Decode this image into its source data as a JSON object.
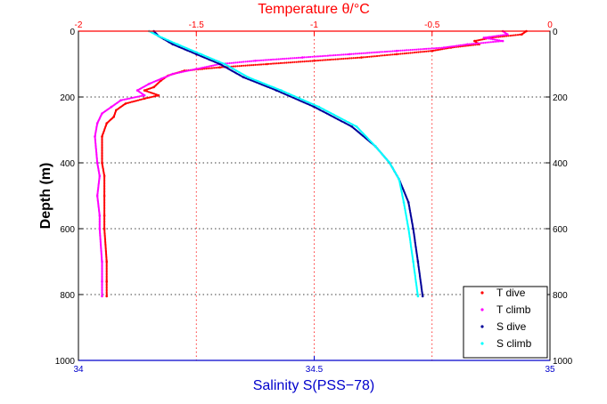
{
  "chart_data": {
    "type": "scatter",
    "title": "",
    "top_axis": {
      "label": "Temperature θ/°C",
      "range": [
        -2,
        0
      ],
      "ticks": [
        -2,
        -1.5,
        -1,
        -0.5,
        0
      ],
      "tick_labels": [
        "-2",
        "-1.5",
        "-1",
        "-0.5",
        "0"
      ],
      "color": "#ff0000"
    },
    "bottom_axis": {
      "label": "Salinity S(PSS−78)",
      "range": [
        34,
        35
      ],
      "ticks": [
        34,
        34.5,
        35
      ],
      "tick_labels": [
        "34",
        "34.5",
        "35"
      ],
      "color": "#0000cc"
    },
    "y_axis": {
      "label": "Depth (m)",
      "range": [
        0,
        1000
      ],
      "inverted": true,
      "ticks": [
        0,
        200,
        400,
        600,
        800,
        1000
      ],
      "tick_labels": [
        "0",
        "200",
        "400",
        "600",
        "800",
        "1000"
      ]
    },
    "grid": true,
    "legend_position": "bottom-right",
    "series": [
      {
        "name": "T dive",
        "axis": "top",
        "color": "#ff0000",
        "points": [
          [
            -0.1,
            0
          ],
          [
            -0.12,
            10
          ],
          [
            -0.25,
            20
          ],
          [
            -0.32,
            30
          ],
          [
            -0.3,
            40
          ],
          [
            -0.42,
            50
          ],
          [
            -0.5,
            60
          ],
          [
            -0.65,
            70
          ],
          [
            -0.8,
            80
          ],
          [
            -1.0,
            90
          ],
          [
            -1.2,
            100
          ],
          [
            -1.4,
            110
          ],
          [
            -1.55,
            120
          ],
          [
            -1.62,
            135
          ],
          [
            -1.65,
            150
          ],
          [
            -1.68,
            170
          ],
          [
            -1.72,
            180
          ],
          [
            -1.66,
            195
          ],
          [
            -1.72,
            205
          ],
          [
            -1.8,
            220
          ],
          [
            -1.84,
            240
          ],
          [
            -1.85,
            260
          ],
          [
            -1.88,
            280
          ],
          [
            -1.9,
            320
          ],
          [
            -1.9,
            400
          ],
          [
            -1.89,
            440
          ],
          [
            -1.89,
            500
          ],
          [
            -1.89,
            560
          ],
          [
            -1.89,
            600
          ],
          [
            -1.88,
            700
          ],
          [
            -1.88,
            760
          ],
          [
            -1.88,
            805
          ]
        ]
      },
      {
        "name": "T climb",
        "axis": "top",
        "color": "#ff00ff",
        "points": [
          [
            -0.2,
            0
          ],
          [
            -0.18,
            10
          ],
          [
            -0.28,
            20
          ],
          [
            -0.2,
            30
          ],
          [
            -0.35,
            40
          ],
          [
            -0.45,
            50
          ],
          [
            -0.65,
            60
          ],
          [
            -0.85,
            70
          ],
          [
            -1.05,
            80
          ],
          [
            -1.25,
            90
          ],
          [
            -1.4,
            100
          ],
          [
            -1.5,
            115
          ],
          [
            -1.6,
            130
          ],
          [
            -1.65,
            145
          ],
          [
            -1.7,
            160
          ],
          [
            -1.75,
            180
          ],
          [
            -1.72,
            195
          ],
          [
            -1.82,
            210
          ],
          [
            -1.86,
            230
          ],
          [
            -1.9,
            250
          ],
          [
            -1.92,
            280
          ],
          [
            -1.93,
            320
          ],
          [
            -1.92,
            400
          ],
          [
            -1.91,
            440
          ],
          [
            -1.92,
            500
          ],
          [
            -1.91,
            560
          ],
          [
            -1.91,
            600
          ],
          [
            -1.9,
            700
          ],
          [
            -1.9,
            760
          ],
          [
            -1.9,
            805
          ]
        ]
      },
      {
        "name": "S dive",
        "axis": "bottom",
        "color": "#000099",
        "points": [
          [
            34.16,
            0
          ],
          [
            34.17,
            15
          ],
          [
            34.2,
            40
          ],
          [
            34.25,
            70
          ],
          [
            34.3,
            100
          ],
          [
            34.35,
            140
          ],
          [
            34.42,
            180
          ],
          [
            34.5,
            230
          ],
          [
            34.58,
            290
          ],
          [
            34.63,
            350
          ],
          [
            34.66,
            400
          ],
          [
            34.68,
            450
          ],
          [
            34.7,
            520
          ],
          [
            34.71,
            600
          ],
          [
            34.72,
            700
          ],
          [
            34.73,
            805
          ]
        ]
      },
      {
        "name": "S climb",
        "axis": "bottom",
        "color": "#00ffff",
        "points": [
          [
            34.15,
            0
          ],
          [
            34.17,
            15
          ],
          [
            34.21,
            40
          ],
          [
            34.26,
            70
          ],
          [
            34.31,
            100
          ],
          [
            34.36,
            140
          ],
          [
            34.43,
            180
          ],
          [
            34.51,
            230
          ],
          [
            34.59,
            290
          ],
          [
            34.63,
            350
          ],
          [
            34.66,
            400
          ],
          [
            34.68,
            450
          ],
          [
            34.69,
            520
          ],
          [
            34.7,
            600
          ],
          [
            34.71,
            700
          ],
          [
            34.72,
            805
          ]
        ]
      }
    ]
  }
}
